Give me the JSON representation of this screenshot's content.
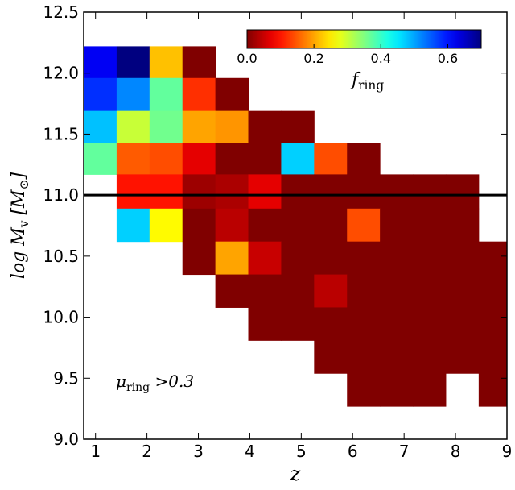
{
  "chart_data": {
    "type": "heatmap",
    "xlabel": "z",
    "ylabel_parts": [
      "log ",
      "M",
      "v",
      "  [M",
      "⊙",
      "]"
    ],
    "colorbar_label_parts": [
      "f",
      "ring"
    ],
    "annotation_parts": [
      "μ",
      "ring",
      " >0.3"
    ],
    "x_edges": [
      0.77,
      1.41,
      2.05,
      2.69,
      3.33,
      3.97,
      4.61,
      5.25,
      5.89,
      6.53,
      7.17,
      7.81,
      8.45,
      9.0
    ],
    "y_edges": [
      12.22,
      11.96,
      11.69,
      11.43,
      11.17,
      10.89,
      10.62,
      10.35,
      10.08,
      9.81,
      9.54,
      9.27,
      9.0
    ],
    "values": [
      [
        0.62,
        0.7,
        0.22,
        0,
        null,
        null,
        null,
        null,
        null,
        null,
        null,
        null,
        null
      ],
      [
        0.58,
        0.52,
        0.37,
        0.12,
        0,
        null,
        null,
        null,
        null,
        null,
        null,
        null,
        null
      ],
      [
        0.48,
        0.3,
        0.36,
        0.2,
        0.19,
        0,
        0,
        null,
        null,
        null,
        null,
        null,
        null
      ],
      [
        0.37,
        0.15,
        0.14,
        0.07,
        0,
        0,
        0.47,
        0.14,
        0,
        null,
        null,
        null,
        null
      ],
      [
        null,
        0.1,
        0.1,
        0.02,
        0.03,
        0.07,
        0,
        0,
        0,
        0,
        0,
        0,
        null
      ],
      [
        null,
        0.47,
        0.26,
        0,
        0.04,
        0,
        0,
        0,
        0.14,
        0,
        0,
        0,
        null
      ],
      [
        null,
        null,
        null,
        0,
        0.2,
        0.05,
        0,
        0,
        0,
        0,
        0,
        0,
        0
      ],
      [
        null,
        null,
        null,
        null,
        0,
        0,
        0,
        0.04,
        0,
        0,
        0,
        0,
        0
      ],
      [
        null,
        null,
        null,
        null,
        null,
        0,
        0,
        0,
        0,
        0,
        0,
        0,
        0
      ],
      [
        null,
        null,
        null,
        null,
        null,
        null,
        null,
        0,
        0,
        0,
        0,
        0,
        0
      ],
      [
        null,
        null,
        null,
        null,
        null,
        null,
        null,
        null,
        0,
        0,
        0,
        null,
        0
      ],
      [
        null,
        null,
        null,
        null,
        null,
        null,
        null,
        null,
        null,
        null,
        null,
        null,
        null
      ]
    ],
    "colormap": "jet_r",
    "clim": [
      0,
      0.7
    ],
    "cticks": [
      {
        "value": 0,
        "label": "0.0"
      },
      0.2,
      0.4,
      0.6
    ],
    "hline": 11.0,
    "hline_color": "#000000",
    "xlim": [
      0.77,
      9.0
    ],
    "ylim": [
      9.0,
      12.5
    ],
    "xticks": [
      1,
      2,
      3,
      4,
      5,
      6,
      7,
      8,
      9
    ],
    "yticks": [
      {
        "value": 9,
        "label": "9.0"
      },
      9.5,
      {
        "value": 10,
        "label": "10.0"
      },
      10.5,
      {
        "value": 11,
        "label": "11.0"
      },
      11.5,
      {
        "value": 12,
        "label": "12.0"
      },
      12.5
    ]
  }
}
